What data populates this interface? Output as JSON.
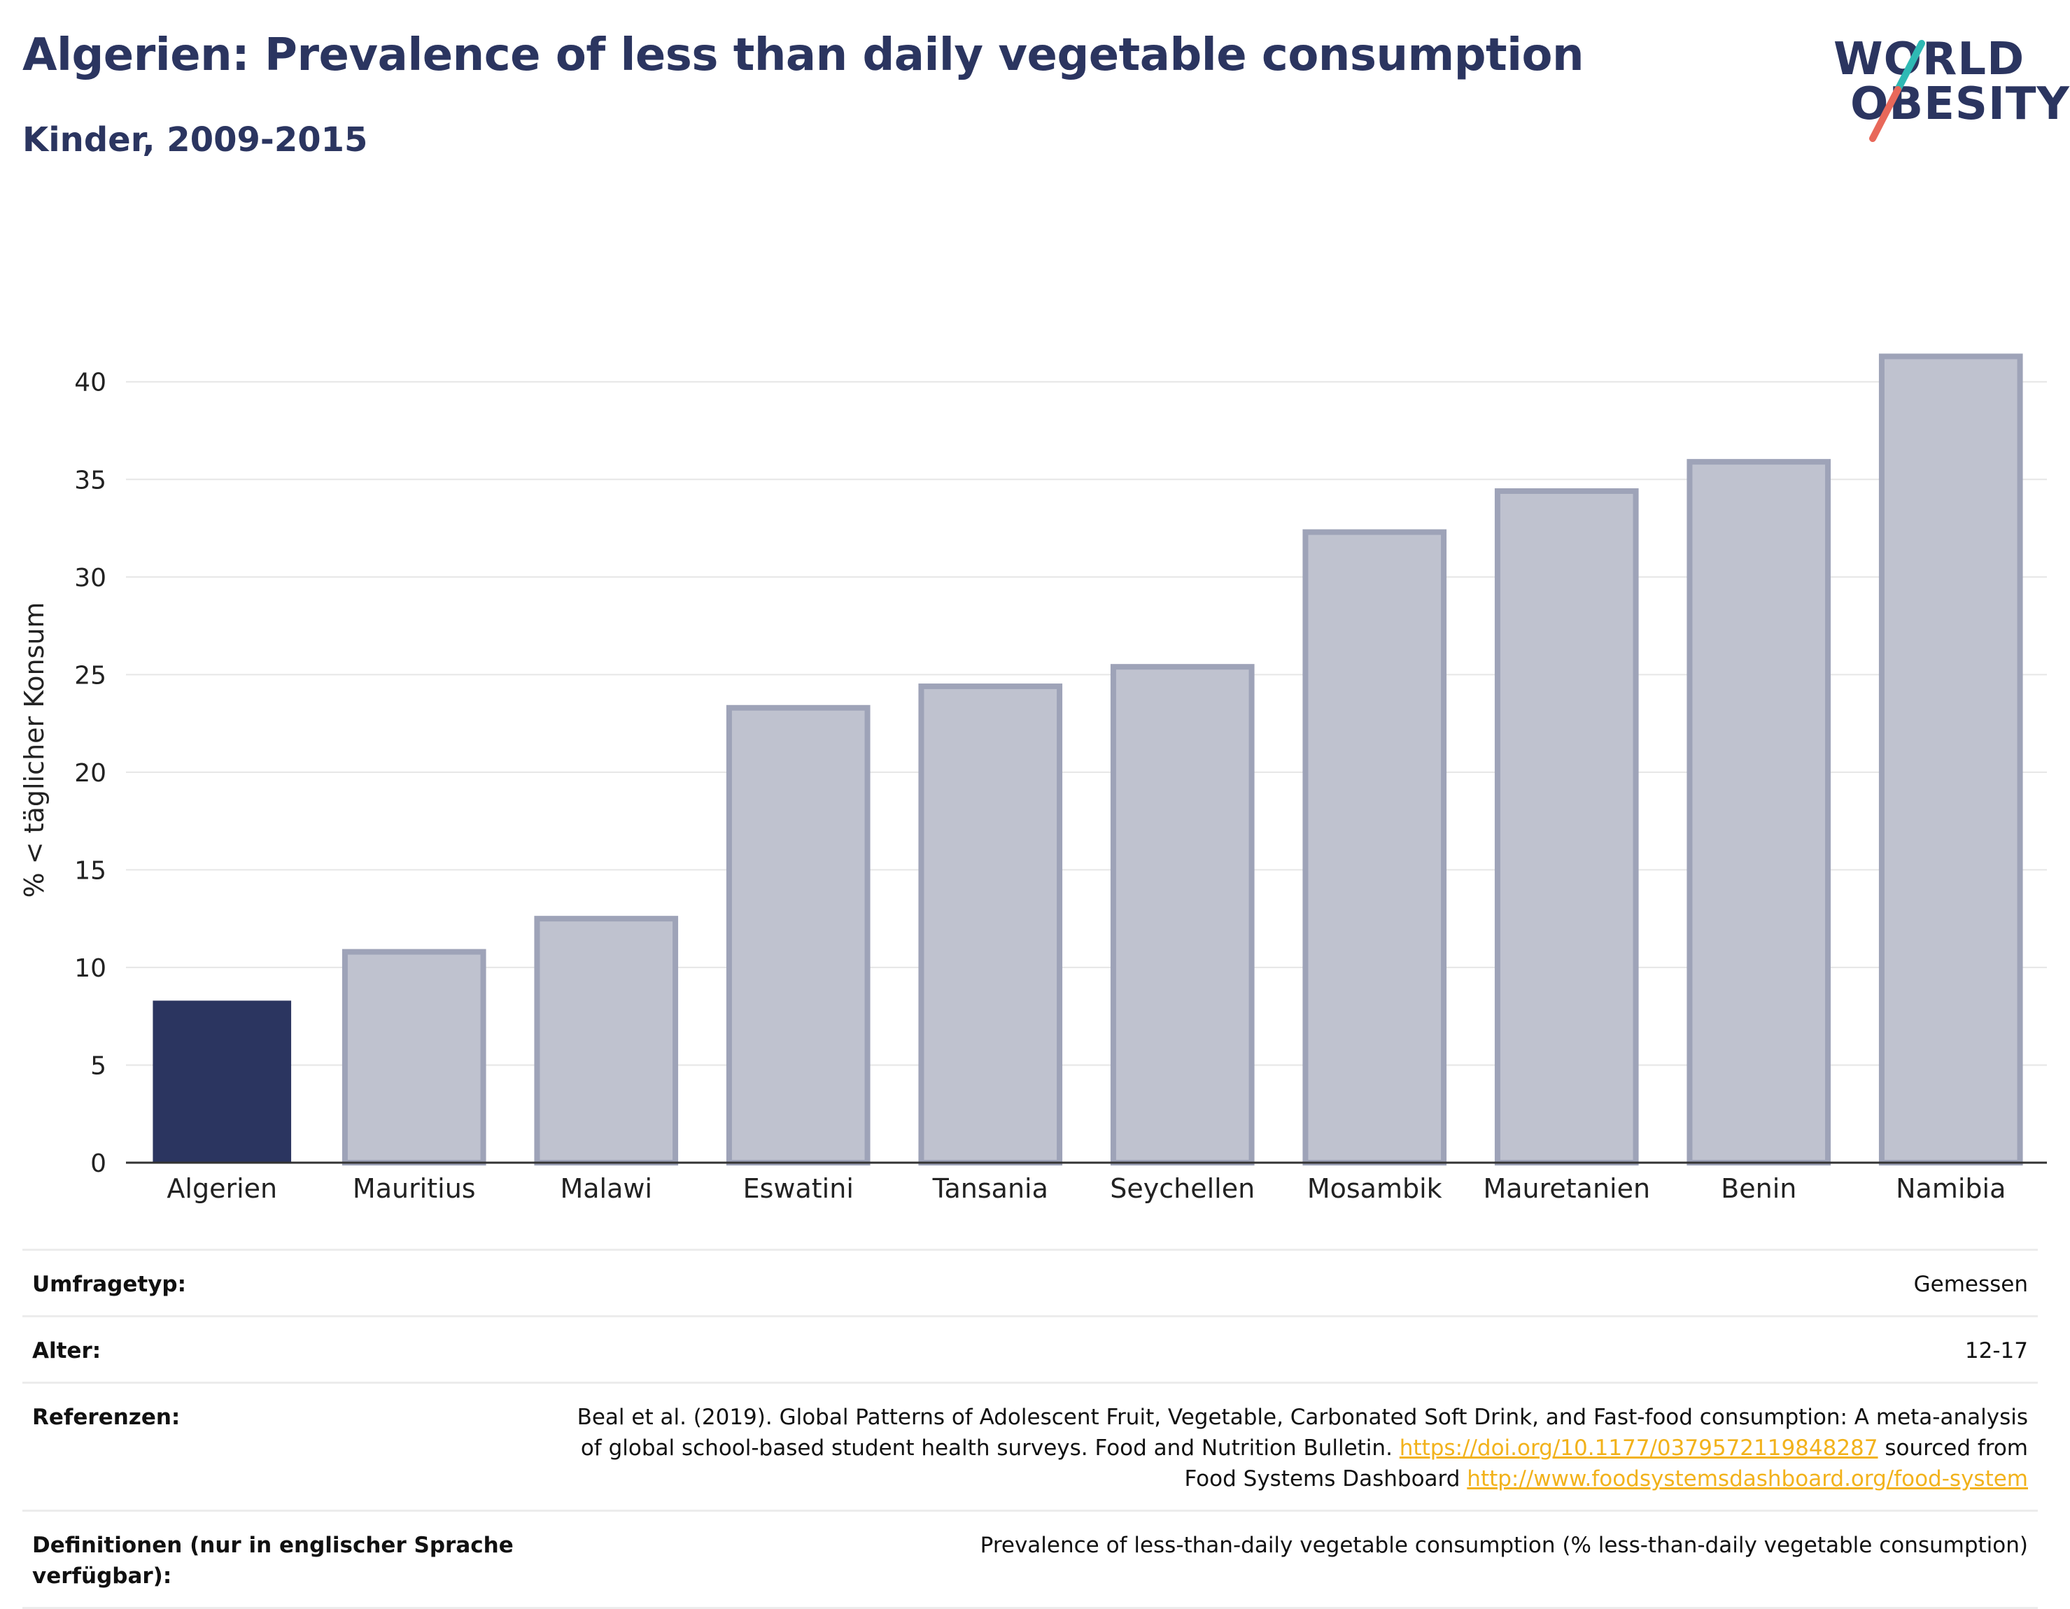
{
  "header": {
    "title": "Algerien: Prevalence of less than daily vegetable consumption",
    "subtitle": "Kinder, 2009-2015"
  },
  "logo": {
    "line1": "WORLD",
    "line2": "OBESITY",
    "colors": {
      "text": "#2b3560",
      "slash_top": "#2fb9b4",
      "slash_bottom": "#e8685a"
    }
  },
  "colors": {
    "highlight_bar": "#2b3560",
    "other_bar_fill": "#bfc2cf",
    "other_bar_stroke": "#9ea3b8",
    "gridline": "#e6e6e6",
    "axis": "#333333",
    "link": "#f2b21b"
  },
  "chart_data": {
    "type": "bar",
    "title": "Algerien: Prevalence of less than daily vegetable consumption",
    "subtitle": "Kinder, 2009-2015",
    "xlabel": "",
    "ylabel": "% < täglicher Konsum",
    "categories": [
      "Algerien",
      "Mauritius",
      "Malawi",
      "Eswatini",
      "Tansania",
      "Seychellen",
      "Mosambik",
      "Mauretanien",
      "Benin",
      "Namibia"
    ],
    "values": [
      8.3,
      10.8,
      12.5,
      23.3,
      24.4,
      25.4,
      32.3,
      34.4,
      35.9,
      41.3
    ],
    "highlight": "Algerien",
    "ylim": [
      0,
      43
    ],
    "yticks": [
      0,
      5,
      10,
      15,
      20,
      25,
      30,
      35,
      40
    ],
    "grid": true,
    "legend": "none"
  },
  "meta": {
    "rows": [
      {
        "label": "Umfragetyp:",
        "value": "Gemessen"
      },
      {
        "label": "Alter:",
        "value": "12-17"
      }
    ],
    "references": {
      "label": "Referenzen:",
      "line1": "Beal et al. (2019). Global Patterns of Adolescent Fruit, Vegetable, Carbonated Soft Drink, and Fast-food consumption: A meta-analysis",
      "line2_prefix": "of global school-based student health surveys. Food and Nutrition Bulletin. ",
      "link1": "https://doi.org/10.1177/0379572119848287",
      "line2_suffix": " sourced from",
      "line3_prefix": "Food Systems Dashboard ",
      "link2": "http://www.foodsystemsdashboard.org/food-system"
    },
    "definitions": {
      "label": "Definitionen (nur in englischer Sprache verfügbar):",
      "value": "Prevalence of less-than-daily vegetable consumption (% less-than-daily vegetable consumption)"
    }
  }
}
